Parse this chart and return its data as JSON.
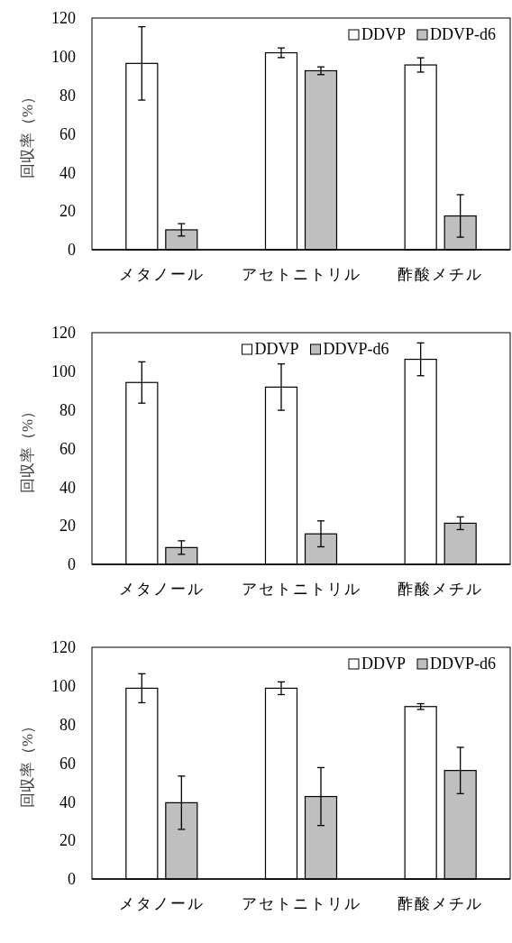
{
  "chart_data": [
    {
      "type": "bar",
      "ylabel": "回収率（%）",
      "categories": [
        "メタノール",
        "アセトニトリル",
        "酢酸メチル"
      ],
      "ylim": [
        0,
        120
      ],
      "yticks": [
        0,
        20,
        40,
        60,
        80,
        100,
        120
      ],
      "legend": "top right",
      "grid": false,
      "series": [
        {
          "name": "DDVP",
          "color": "#ffffff",
          "values": [
            96.5,
            102,
            95.7
          ],
          "errors": [
            19,
            2.5,
            3.7
          ]
        },
        {
          "name": "DDVP-d6",
          "color": "#bfbfbf",
          "values": [
            10.3,
            92.7,
            17.5
          ],
          "errors": [
            3.2,
            2,
            11
          ]
        }
      ]
    },
    {
      "type": "bar",
      "ylabel": "回収率（%）",
      "categories": [
        "メタノール",
        "アセトニトリル",
        "酢酸メチル"
      ],
      "ylim": [
        0,
        120
      ],
      "yticks": [
        0,
        20,
        40,
        60,
        80,
        100,
        120
      ],
      "legend": "top",
      "grid": false,
      "series": [
        {
          "name": "DDVP",
          "color": "#ffffff",
          "values": [
            94.2,
            91.8,
            106.2
          ],
          "errors": [
            10.7,
            12,
            8.5
          ]
        },
        {
          "name": "DDVP-d6",
          "color": "#bfbfbf",
          "values": [
            8.7,
            15.8,
            21.3
          ],
          "errors": [
            3.5,
            6.7,
            3.3
          ]
        }
      ]
    },
    {
      "type": "bar",
      "ylabel": "回収率（%）",
      "categories": [
        "メタノール",
        "アセトニトリル",
        "酢酸メチル"
      ],
      "ylim": [
        0,
        120
      ],
      "yticks": [
        0,
        20,
        40,
        60,
        80,
        100,
        120
      ],
      "legend": "top right",
      "grid": false,
      "series": [
        {
          "name": "DDVP",
          "color": "#ffffff",
          "values": [
            98.8,
            98.8,
            89.3
          ],
          "errors": [
            7.5,
            3.3,
            1.5
          ]
        },
        {
          "name": "DDVP-d6",
          "color": "#bfbfbf",
          "values": [
            39.5,
            42.7,
            56.2
          ],
          "errors": [
            13.8,
            15,
            12
          ]
        }
      ]
    }
  ]
}
